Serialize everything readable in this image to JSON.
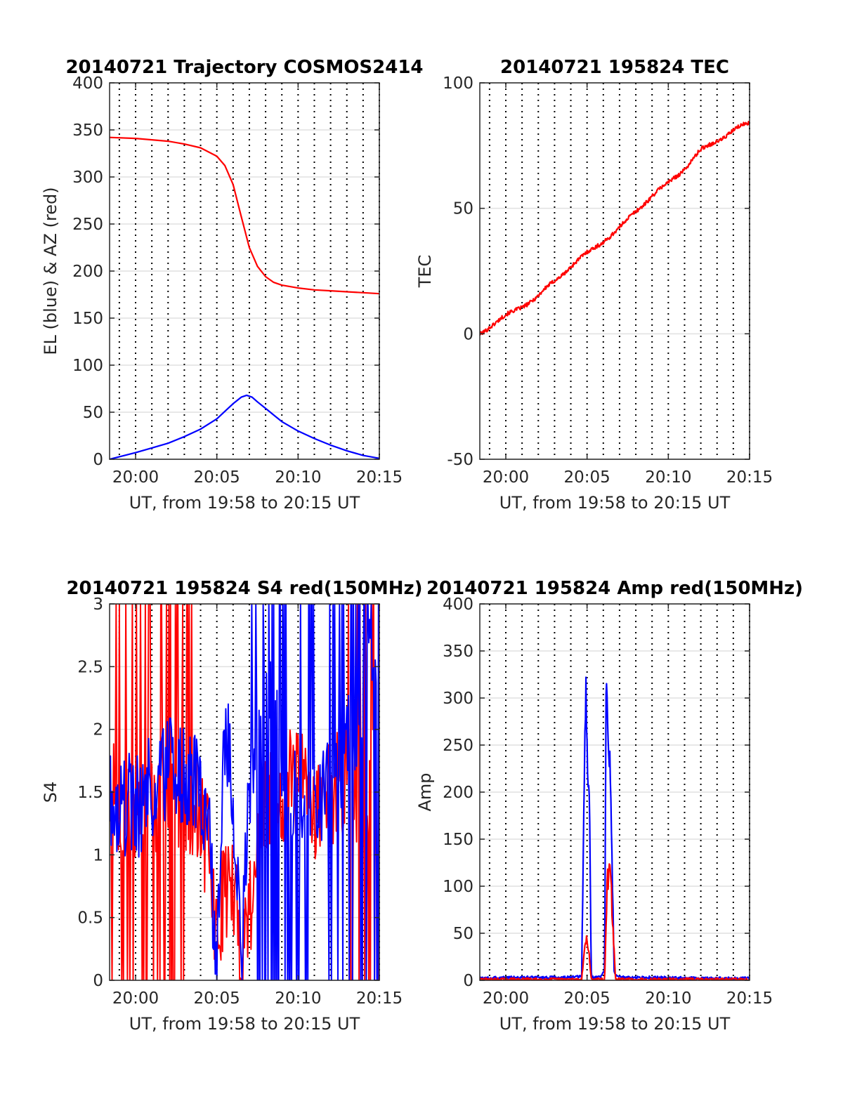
{
  "chart_data": [
    {
      "type": "line",
      "title": "20140721 Trajectory COSMOS2414",
      "xlabel": "UT, from 19:58 to 20:15 UT",
      "ylabel": "EL (blue) & AZ (red)",
      "xlim": [
        "19:58:24",
        "20:15:00"
      ],
      "ylim": [
        0,
        400
      ],
      "xticks": [
        "20:00",
        "20:05",
        "20:10",
        "20:15"
      ],
      "yticks": [
        "0",
        "50",
        "100",
        "150",
        "200",
        "250",
        "300",
        "350",
        "400"
      ],
      "grid": true,
      "colors": {
        "AZ": "#ff0000",
        "EL": "#0000ff"
      },
      "series": [
        {
          "key": "AZ",
          "color": "#ff0000",
          "x": [
            "19:58:24",
            "20:00:00",
            "20:02:00",
            "20:03:00",
            "20:04:00",
            "20:05:00",
            "20:05:30",
            "20:06:00",
            "20:06:30",
            "20:07:00",
            "20:07:30",
            "20:08:00",
            "20:08:30",
            "20:09:00",
            "20:10:00",
            "20:11:00",
            "20:12:00",
            "20:13:00",
            "20:14:00",
            "20:15:00"
          ],
          "y": [
            342,
            341,
            338,
            335,
            331,
            322,
            312,
            292,
            258,
            225,
            205,
            194,
            188,
            185,
            182,
            180,
            179,
            178,
            177,
            176
          ]
        },
        {
          "key": "EL",
          "color": "#0000ff",
          "x": [
            "19:58:24",
            "20:00:00",
            "20:01:00",
            "20:02:00",
            "20:03:00",
            "20:04:00",
            "20:05:00",
            "20:05:30",
            "20:06:00",
            "20:06:30",
            "20:06:50",
            "20:07:10",
            "20:07:30",
            "20:08:00",
            "20:08:30",
            "20:09:00",
            "20:10:00",
            "20:11:00",
            "20:12:00",
            "20:13:00",
            "20:14:00",
            "20:15:00"
          ],
          "y": [
            0,
            7,
            12,
            17,
            24,
            32,
            43,
            51,
            59,
            66,
            68,
            66,
            61,
            54,
            47,
            40,
            30,
            22,
            15,
            9,
            4,
            1
          ]
        }
      ]
    },
    {
      "type": "line",
      "title": "20140721 195824 TEC",
      "xlabel": "UT, from 19:58 to 20:15 UT",
      "ylabel": "TEC",
      "xlim": [
        "19:58:24",
        "20:15:00"
      ],
      "ylim": [
        -50,
        100
      ],
      "xticks": [
        "20:00",
        "20:05",
        "20:10",
        "20:15"
      ],
      "yticks": [
        "-50",
        "0",
        "50",
        "100"
      ],
      "grid": true,
      "series": [
        {
          "key": "TEC",
          "color": "#ff0000",
          "x": [
            "19:58:24",
            "19:59:00",
            "20:00:00",
            "20:01:00",
            "20:02:00",
            "20:03:00",
            "20:04:00",
            "20:05:00",
            "20:06:00",
            "20:07:00",
            "20:08:00",
            "20:09:00",
            "20:10:00",
            "20:11:00",
            "20:12:00",
            "20:13:00",
            "20:14:00",
            "20:15:00"
          ],
          "y": [
            0,
            3,
            7,
            11,
            15,
            21,
            27,
            32,
            37,
            42,
            49,
            55,
            60,
            66,
            73,
            77,
            81,
            84
          ]
        }
      ]
    },
    {
      "type": "line",
      "title": "20140721 195824 S4 red(150MHz)",
      "xlabel": "UT, from 19:58 to 20:15 UT",
      "ylabel": "S4",
      "xlim": [
        "19:58:24",
        "20:15:00"
      ],
      "ylim": [
        0,
        3
      ],
      "xticks": [
        "20:00",
        "20:05",
        "20:10",
        "20:15"
      ],
      "yticks": [
        "0",
        "0.5",
        "1",
        "1.5",
        "2",
        "2.5",
        "3"
      ],
      "grid": true,
      "series": [
        {
          "key": "S4-red",
          "color": "#ff0000",
          "x": [
            "19:58:24",
            "19:59:00",
            "20:00:00",
            "20:01:00",
            "20:02:00",
            "20:03:00",
            "20:04:00",
            "20:04:30",
            "20:05:00",
            "20:05:30",
            "20:06:00",
            "20:06:30",
            "20:07:00",
            "20:08:00",
            "20:09:00",
            "20:10:00",
            "20:11:00",
            "20:12:00",
            "20:13:00",
            "20:14:00",
            "20:15:00"
          ],
          "y": [
            1.5,
            1.4,
            1.3,
            1.4,
            1.5,
            1.5,
            1.3,
            1.0,
            0.3,
            0.8,
            0.7,
            0.2,
            0.6,
            1.4,
            1.5,
            1.6,
            1.4,
            1.5,
            1.6,
            1.5,
            1.8
          ]
        },
        {
          "key": "S4-blue",
          "color": "#0000ff",
          "x": [
            "19:58:24",
            "19:59:00",
            "20:00:00",
            "20:01:00",
            "20:02:00",
            "20:03:00",
            "20:04:00",
            "20:04:30",
            "20:05:00",
            "20:05:30",
            "20:06:00",
            "20:06:30",
            "20:07:00",
            "20:08:00",
            "20:09:00",
            "20:10:00",
            "20:11:00",
            "20:12:00",
            "20:13:00",
            "20:14:00",
            "20:15:00"
          ],
          "y": [
            1.5,
            1.4,
            1.4,
            1.5,
            1.7,
            1.6,
            1.5,
            1.1,
            0.2,
            2.0,
            1.4,
            0.2,
            1.5,
            2.2,
            1.9,
            1.3,
            1.6,
            1.5,
            2.0,
            2.2,
            2.8
          ]
        }
      ]
    },
    {
      "type": "line",
      "title": "20140721 195824 Amp red(150MHz)",
      "xlabel": "UT, from 19:58 to 20:15 UT",
      "ylabel": "Amp",
      "xlim": [
        "19:58:24",
        "20:15:00"
      ],
      "ylim": [
        0,
        400
      ],
      "xticks": [
        "20:00",
        "20:05",
        "20:10",
        "20:15"
      ],
      "yticks": [
        "0",
        "50",
        "100",
        "150",
        "200",
        "250",
        "300",
        "350",
        "400"
      ],
      "grid": true,
      "series": [
        {
          "key": "Amp-blue",
          "color": "#0000ff",
          "x": [
            "19:58:24",
            "20:00:00",
            "20:02:00",
            "20:04:00",
            "20:04:40",
            "20:04:50",
            "20:04:55",
            "20:05:00",
            "20:05:05",
            "20:05:10",
            "20:05:15",
            "20:05:20",
            "20:05:30",
            "20:05:50",
            "20:06:05",
            "20:06:10",
            "20:06:15",
            "20:06:20",
            "20:06:25",
            "20:06:30",
            "20:06:35",
            "20:06:40",
            "20:06:50",
            "20:07:00",
            "20:09:00",
            "20:12:00",
            "20:15:00"
          ],
          "y": [
            2,
            3,
            3,
            3,
            4,
            220,
            315,
            240,
            205,
            180,
            8,
            3,
            3,
            4,
            10,
            290,
            305,
            260,
            240,
            170,
            90,
            10,
            4,
            3,
            3,
            2,
            2
          ]
        },
        {
          "key": "Amp-red",
          "color": "#ff0000",
          "x": [
            "19:58:24",
            "20:04:40",
            "20:04:55",
            "20:05:05",
            "20:05:15",
            "20:05:20",
            "20:06:05",
            "20:06:15",
            "20:06:25",
            "20:06:35",
            "20:06:45",
            "20:15:00"
          ],
          "y": [
            1,
            1,
            45,
            35,
            2,
            1,
            1,
            105,
            120,
            60,
            1,
            1
          ]
        }
      ]
    }
  ]
}
